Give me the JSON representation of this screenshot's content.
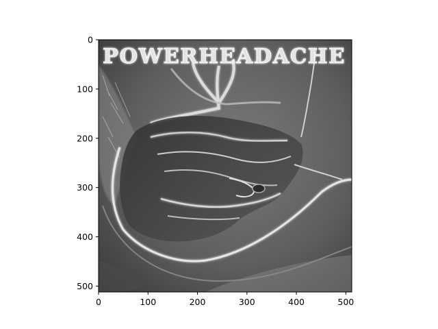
{
  "image": {
    "title_art_text": "POWERHEADACHE",
    "description_colormap": "grayscale"
  },
  "axes": {
    "x_ticks": [
      "0",
      "100",
      "200",
      "300",
      "400",
      "500"
    ],
    "y_ticks": [
      "0",
      "100",
      "200",
      "300",
      "400",
      "500"
    ],
    "x_range": [
      0,
      512
    ],
    "y_range": [
      512,
      0
    ]
  }
}
